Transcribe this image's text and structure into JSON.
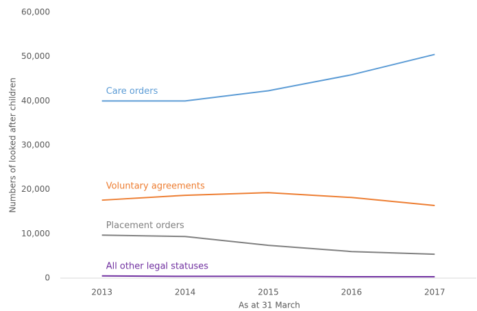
{
  "chart_data": {
    "type": "line",
    "x_label": "As at 31 March",
    "y_label": "Numbers of looked after children",
    "categories": [
      "2013",
      "2014",
      "2015",
      "2016",
      "2017"
    ],
    "series": [
      {
        "name": "Care orders",
        "color": "#5b9bd5",
        "values": [
          40000,
          40000,
          42300,
          45900,
          50500
        ]
      },
      {
        "name": "Voluntary agreements",
        "color": "#ed7d31",
        "values": [
          17600,
          18700,
          19300,
          18200,
          16400
        ]
      },
      {
        "name": "Placement orders",
        "color": "#7f7f7f",
        "values": [
          9700,
          9400,
          7400,
          6000,
          5400
        ]
      },
      {
        "name": "All other legal statuses",
        "color": "#7030a0",
        "values": [
          500,
          400,
          400,
          300,
          300
        ]
      }
    ],
    "ylim": [
      0,
      60000
    ],
    "yticks": [
      0,
      {
        "value": 10000,
        "label": "10,000"
      },
      {
        "value": 20000,
        "label": "20,000"
      },
      {
        "value": 30000,
        "label": "30,000"
      },
      {
        "value": 40000,
        "label": "40,000"
      },
      {
        "value": 50000,
        "label": "50,000"
      },
      {
        "value": 60000,
        "label": "60,000"
      }
    ],
    "grid": false
  }
}
